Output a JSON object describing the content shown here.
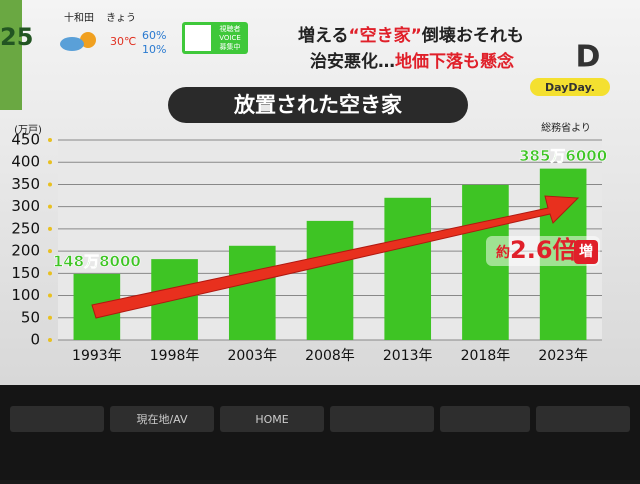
{
  "header": {
    "clock": "25",
    "place": "十和田",
    "day": "きょう",
    "temperature": "30℃",
    "humidity": "60%",
    "rain": "10%",
    "voice": [
      "視聴者",
      "VOICE",
      "募集中"
    ],
    "headline_1": [
      {
        "text": "増える",
        "color": "#222222"
      },
      {
        "text": "“空き家”",
        "color": "#e0202a"
      },
      {
        "text": "倒壊おそれも",
        "color": "#222222"
      }
    ],
    "headline_2": [
      {
        "text": "治安悪化…",
        "color": "#222222"
      },
      {
        "text": "地価下落も懸念",
        "color": "#e0202a"
      }
    ],
    "logo": "D",
    "show": "DayDay."
  },
  "chart_data": {
    "type": "bar",
    "title": "放置された空き家",
    "y_label": "(万戸)",
    "source": "総務省より",
    "categories": [
      "1993年",
      "1998年",
      "2003年",
      "2008年",
      "2013年",
      "2018年",
      "2023年"
    ],
    "values": [
      148.8,
      182,
      212,
      268,
      320,
      349,
      385.6
    ],
    "value_labels": [
      "148万8000",
      null,
      null,
      null,
      null,
      null,
      "385万6000"
    ],
    "color": "#3ec424",
    "ylim": [
      0,
      450
    ],
    "yticks": [
      0,
      50,
      100,
      150,
      200,
      250,
      300,
      350,
      400,
      450
    ],
    "grid": true,
    "annotation": [
      "約",
      "2.6倍",
      "増"
    ]
  },
  "buttons": [
    "現在地/AV",
    "HOME"
  ]
}
